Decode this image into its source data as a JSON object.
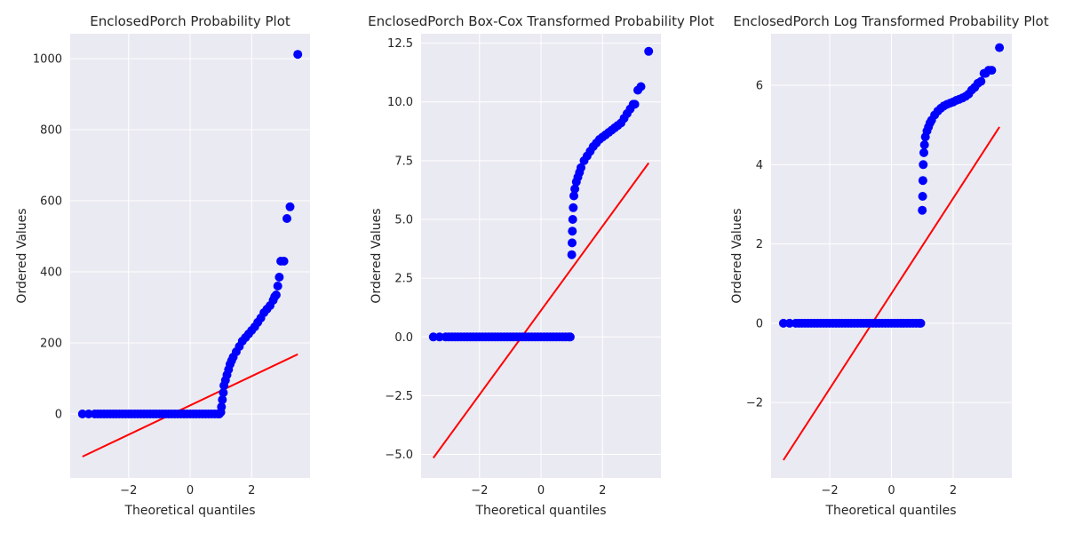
{
  "chart_data": [
    {
      "type": "scatter",
      "title": "EnclosedPorch Probability Plot",
      "xlabel": "Theoretical quantiles",
      "ylabel": "Ordered Values",
      "xlim": [
        -3.9,
        3.9
      ],
      "ylim": [
        -180,
        1070
      ],
      "xticks": [
        -2,
        0,
        2
      ],
      "xtick_labels": [
        "−2",
        "0",
        "2"
      ],
      "yticks": [
        0,
        200,
        400,
        600,
        800,
        1000
      ],
      "ytick_labels": [
        "0",
        "200",
        "400",
        "600",
        "800",
        "1000"
      ],
      "grid": true,
      "series": [
        {
          "kind": "points",
          "color": "#0000ff",
          "x": [
            -3.5,
            -3.3,
            -3.1,
            -3.0,
            -2.9,
            -2.8,
            -2.7,
            -2.6,
            -2.5,
            -2.4,
            -2.3,
            -2.2,
            -2.1,
            -2.0,
            -1.9,
            -1.8,
            -1.7,
            -1.6,
            -1.5,
            -1.4,
            -1.3,
            -1.2,
            -1.1,
            -1.0,
            -0.9,
            -0.8,
            -0.7,
            -0.6,
            -0.5,
            -0.4,
            -0.3,
            -0.2,
            -0.1,
            0.0,
            0.1,
            0.2,
            0.3,
            0.4,
            0.5,
            0.6,
            0.7,
            0.8,
            0.9,
            0.95,
            1.0,
            1.02,
            1.05,
            1.08,
            1.1,
            1.15,
            1.2,
            1.25,
            1.3,
            1.35,
            1.4,
            1.5,
            1.6,
            1.7,
            1.8,
            1.9,
            2.0,
            2.1,
            2.2,
            2.3,
            2.4,
            2.5,
            2.6,
            2.7,
            2.75,
            2.8,
            2.85,
            2.9,
            2.95,
            3.05,
            3.15,
            3.25,
            3.5
          ],
          "y": [
            0,
            0,
            0,
            0,
            0,
            0,
            0,
            0,
            0,
            0,
            0,
            0,
            0,
            0,
            0,
            0,
            0,
            0,
            0,
            0,
            0,
            0,
            0,
            0,
            0,
            0,
            0,
            0,
            0,
            0,
            0,
            0,
            0,
            0,
            0,
            0,
            0,
            0,
            0,
            0,
            0,
            0,
            0,
            0,
            5,
            20,
            40,
            60,
            80,
            95,
            110,
            125,
            140,
            150,
            160,
            175,
            190,
            205,
            215,
            225,
            235,
            245,
            258,
            270,
            285,
            295,
            305,
            320,
            330,
            335,
            360,
            385,
            430,
            430,
            550,
            583,
            1012
          ]
        },
        {
          "kind": "fit-line",
          "color": "#ff0000",
          "x": [
            -3.5,
            3.5
          ],
          "y": [
            -120,
            168
          ]
        }
      ]
    },
    {
      "type": "scatter",
      "title": "EnclosedPorch Box-Cox Transformed Probability Plot",
      "xlabel": "Theoretical quantiles",
      "ylabel": "Ordered Values",
      "xlim": [
        -3.9,
        3.9
      ],
      "ylim": [
        -6.0,
        12.9
      ],
      "xticks": [
        -2,
        0,
        2
      ],
      "xtick_labels": [
        "−2",
        "0",
        "2"
      ],
      "yticks": [
        -5.0,
        -2.5,
        0.0,
        2.5,
        5.0,
        7.5,
        10.0,
        12.5
      ],
      "ytick_labels": [
        "−5.0",
        "−2.5",
        "0.0",
        "2.5",
        "5.0",
        "7.5",
        "10.0",
        "12.5"
      ],
      "grid": true,
      "series": [
        {
          "kind": "points",
          "color": "#0000ff",
          "x": [
            -3.5,
            -3.3,
            -3.1,
            -3.0,
            -2.9,
            -2.8,
            -2.7,
            -2.6,
            -2.5,
            -2.4,
            -2.3,
            -2.2,
            -2.1,
            -2.0,
            -1.9,
            -1.8,
            -1.7,
            -1.6,
            -1.5,
            -1.4,
            -1.3,
            -1.2,
            -1.1,
            -1.0,
            -0.9,
            -0.8,
            -0.7,
            -0.6,
            -0.5,
            -0.4,
            -0.3,
            -0.2,
            -0.1,
            0.0,
            0.1,
            0.2,
            0.3,
            0.4,
            0.5,
            0.6,
            0.7,
            0.8,
            0.9,
            0.95,
            1.0,
            1.01,
            1.02,
            1.03,
            1.05,
            1.07,
            1.1,
            1.15,
            1.2,
            1.25,
            1.3,
            1.4,
            1.5,
            1.6,
            1.7,
            1.8,
            1.9,
            2.0,
            2.1,
            2.2,
            2.3,
            2.4,
            2.5,
            2.6,
            2.7,
            2.8,
            2.9,
            3.0,
            3.05,
            3.15,
            3.25,
            3.5
          ],
          "y": [
            0,
            0,
            0,
            0,
            0,
            0,
            0,
            0,
            0,
            0,
            0,
            0,
            0,
            0,
            0,
            0,
            0,
            0,
            0,
            0,
            0,
            0,
            0,
            0,
            0,
            0,
            0,
            0,
            0,
            0,
            0,
            0,
            0,
            0,
            0,
            0,
            0,
            0,
            0,
            0,
            0,
            0,
            0,
            0,
            3.5,
            4.0,
            4.5,
            5.0,
            5.5,
            6.0,
            6.3,
            6.6,
            6.8,
            7.0,
            7.2,
            7.5,
            7.7,
            7.9,
            8.1,
            8.25,
            8.4,
            8.5,
            8.6,
            8.7,
            8.8,
            8.9,
            9.0,
            9.1,
            9.3,
            9.5,
            9.7,
            9.9,
            9.9,
            10.5,
            10.65,
            12.15
          ]
        },
        {
          "kind": "fit-line",
          "color": "#ff0000",
          "x": [
            -3.5,
            3.5
          ],
          "y": [
            -5.15,
            7.4
          ]
        }
      ]
    },
    {
      "type": "scatter",
      "title": "EnclosedPorch Log Transformed Probability Plot",
      "xlabel": "Theoretical quantiles",
      "ylabel": "Ordered Values",
      "xlim": [
        -3.9,
        3.9
      ],
      "ylim": [
        -3.9,
        7.3
      ],
      "xticks": [
        -2,
        0,
        2
      ],
      "xtick_labels": [
        "−2",
        "0",
        "2"
      ],
      "yticks": [
        -2,
        0,
        2,
        4,
        6
      ],
      "ytick_labels": [
        "−2",
        "0",
        "2",
        "4",
        "6"
      ],
      "grid": true,
      "series": [
        {
          "kind": "points",
          "color": "#0000ff",
          "x": [
            -3.5,
            -3.3,
            -3.1,
            -3.0,
            -2.9,
            -2.8,
            -2.7,
            -2.6,
            -2.5,
            -2.4,
            -2.3,
            -2.2,
            -2.1,
            -2.0,
            -1.9,
            -1.8,
            -1.7,
            -1.6,
            -1.5,
            -1.4,
            -1.3,
            -1.2,
            -1.1,
            -1.0,
            -0.9,
            -0.8,
            -0.7,
            -0.6,
            -0.5,
            -0.4,
            -0.3,
            -0.2,
            -0.1,
            0.0,
            0.1,
            0.2,
            0.3,
            0.4,
            0.5,
            0.6,
            0.7,
            0.8,
            0.9,
            0.95,
            1.0,
            1.01,
            1.02,
            1.03,
            1.05,
            1.07,
            1.1,
            1.15,
            1.2,
            1.25,
            1.3,
            1.4,
            1.5,
            1.6,
            1.7,
            1.8,
            1.9,
            2.0,
            2.1,
            2.2,
            2.3,
            2.4,
            2.5,
            2.6,
            2.7,
            2.8,
            2.9,
            3.0,
            3.05,
            3.15,
            3.25,
            3.5
          ],
          "y": [
            0,
            0,
            0,
            0,
            0,
            0,
            0,
            0,
            0,
            0,
            0,
            0,
            0,
            0,
            0,
            0,
            0,
            0,
            0,
            0,
            0,
            0,
            0,
            0,
            0,
            0,
            0,
            0,
            0,
            0,
            0,
            0,
            0,
            0,
            0,
            0,
            0,
            0,
            0,
            0,
            0,
            0,
            0,
            0,
            2.85,
            3.2,
            3.6,
            4.0,
            4.3,
            4.5,
            4.7,
            4.85,
            4.95,
            5.05,
            5.12,
            5.25,
            5.35,
            5.42,
            5.48,
            5.52,
            5.55,
            5.58,
            5.62,
            5.65,
            5.68,
            5.72,
            5.78,
            5.88,
            5.95,
            6.05,
            6.1,
            6.3,
            6.3,
            6.38,
            6.38,
            6.95
          ]
        },
        {
          "kind": "fit-line",
          "color": "#ff0000",
          "x": [
            -3.5,
            3.5
          ],
          "y": [
            -3.45,
            4.95
          ]
        }
      ]
    }
  ]
}
